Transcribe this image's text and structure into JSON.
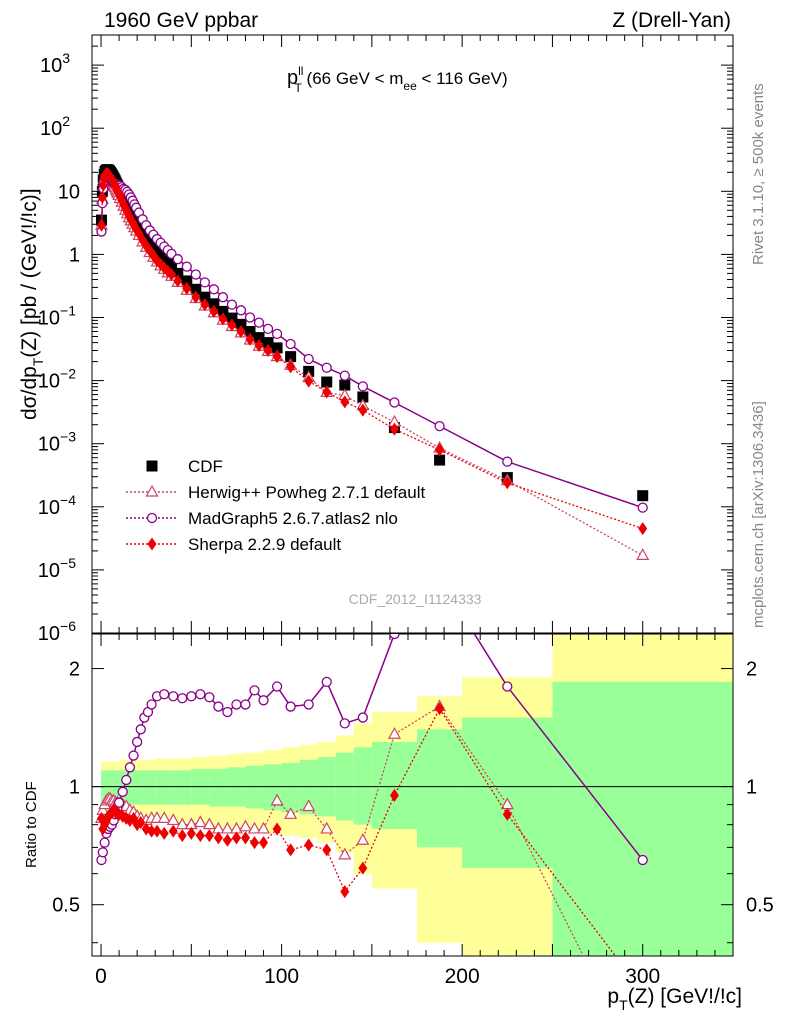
{
  "header": {
    "beam": "1960 GeV ppbar",
    "process": "Z (Drell-Yan)"
  },
  "side": {
    "rivet": "Rivet 3.1.10, ≥ 500k events",
    "source": "mcplots.cern.ch [arXiv:1306.3436]"
  },
  "analysis_id": "CDF_2012_I1124333",
  "panel_title": {
    "main": "p",
    "sup": "ll",
    "sub": "T",
    "rest_a": " (66 GeV < m",
    "rest_sub": "ee",
    "rest_b": " < 116 GeV)"
  },
  "axis_labels": {
    "y_main_a": "dσ/dp",
    "y_main_sub": "T",
    "y_main_b": "(Z) [pb / (GeV!/!c)]",
    "y_ratio": "Ratio to CDF",
    "x_a": "p",
    "x_sub": "T",
    "x_b": "(Z) [GeV!/!c]"
  },
  "colors": {
    "data": "#000000",
    "herwig": "#cc4466",
    "madgraph": "#880088",
    "sherpa": "#ee0000",
    "band_inner": "#99ff99",
    "band_outer": "#ffff99"
  },
  "chart_data": [
    {
      "type": "scatter",
      "panel": "main",
      "yscale": "log",
      "xlim": [
        -5,
        350
      ],
      "ylim": [
        1e-06,
        3000
      ],
      "x_ticks": [
        0,
        100,
        200,
        300
      ],
      "y_tick_labels": [
        {
          "v": 1000,
          "m": "10",
          "e": "3"
        },
        {
          "v": 100,
          "m": "10",
          "e": "2"
        },
        {
          "v": 10,
          "m": "10",
          "e": ""
        },
        {
          "v": 1,
          "m": "1",
          "e": ""
        },
        {
          "v": 0.1,
          "m": "10",
          "e": "−1"
        },
        {
          "v": 0.01,
          "m": "10",
          "e": "−2"
        },
        {
          "v": 0.001,
          "m": "10",
          "e": "−3"
        },
        {
          "v": 0.0001,
          "m": "10",
          "e": "−4"
        },
        {
          "v": 1e-05,
          "m": "10",
          "e": "−5"
        },
        {
          "v": 1e-06,
          "m": "10",
          "e": "−6"
        }
      ],
      "legend_position": "bottom-left",
      "series": [
        {
          "name": "CDF",
          "marker": "square",
          "x": [
            0.25,
            0.75,
            1.25,
            1.75,
            2.25,
            2.75,
            3.25,
            3.75,
            4.25,
            4.75,
            5.25,
            5.75,
            6.25,
            6.75,
            7.25,
            7.75,
            8.25,
            8.75,
            9.25,
            9.75,
            10.5,
            11.5,
            12.5,
            13.5,
            14.5,
            15.5,
            16.5,
            17.5,
            18.5,
            19.5,
            21,
            23,
            25,
            27,
            29,
            31,
            33,
            35,
            37,
            39,
            42.5,
            47.5,
            52.5,
            57.5,
            62.5,
            67.5,
            72.5,
            77.5,
            82.5,
            87.5,
            92.5,
            97.5,
            105,
            115,
            125,
            135,
            145,
            162.5,
            187.5,
            225,
            300
          ],
          "y": [
            3.5,
            10.0,
            15.0,
            18.5,
            20.5,
            21.5,
            22.0,
            22.0,
            21.5,
            21.0,
            20.0,
            19.0,
            18.0,
            17.0,
            16.0,
            15.0,
            14.0,
            13.0,
            12.2,
            11.4,
            10.2,
            8.8,
            7.6,
            6.6,
            5.8,
            5.1,
            4.5,
            4.0,
            3.55,
            3.2,
            2.7,
            2.15,
            1.75,
            1.45,
            1.22,
            1.04,
            0.9,
            0.79,
            0.7,
            0.62,
            0.5,
            0.38,
            0.28,
            0.21,
            0.165,
            0.125,
            0.098,
            0.078,
            0.06,
            0.048,
            0.04,
            0.033,
            0.024,
            0.014,
            0.0095,
            0.0085,
            0.0055,
            0.0018,
            0.00055,
            0.00029,
            0.00015
          ]
        },
        {
          "name": "Herwig++ Powheg 2.7.1 default",
          "marker": "triangle-open",
          "x": [
            0.25,
            0.75,
            1.25,
            1.75,
            2.25,
            2.75,
            3.25,
            3.75,
            4.25,
            4.75,
            5.25,
            5.75,
            6.25,
            6.75,
            7.25,
            7.75,
            8.25,
            8.75,
            9.25,
            9.75,
            10.5,
            11.5,
            12.5,
            13.5,
            14.5,
            15.5,
            16.5,
            17.5,
            18.5,
            19.5,
            21,
            23,
            25,
            27,
            29,
            31,
            33,
            35,
            37,
            39,
            42.5,
            47.5,
            52.5,
            57.5,
            62.5,
            67.5,
            72.5,
            77.5,
            82.5,
            87.5,
            92.5,
            97.5,
            105,
            115,
            125,
            135,
            145,
            162.5,
            187.5,
            225,
            300
          ],
          "y": [
            2.9,
            7.5,
            12.0,
            15.5,
            17.3,
            18.1,
            18.4,
            18.2,
            17.8,
            17.2,
            16.3,
            15.3,
            14.3,
            13.3,
            12.4,
            11.5,
            10.6,
            9.9,
            9.3,
            8.6,
            7.7,
            6.7,
            5.8,
            5.0,
            4.4,
            3.8,
            3.4,
            3.0,
            2.65,
            2.35,
            2.0,
            1.58,
            1.3,
            1.07,
            0.9,
            0.76,
            0.66,
            0.58,
            0.51,
            0.45,
            0.36,
            0.27,
            0.2,
            0.152,
            0.119,
            0.091,
            0.072,
            0.057,
            0.044,
            0.035,
            0.029,
            0.024,
            0.0175,
            0.0112,
            0.0065,
            0.0058,
            0.004,
            0.0022,
            0.00085,
            0.00026,
            1.7e-05
          ]
        },
        {
          "name": "MadGraph5 2.6.7.atlas2 nlo",
          "marker": "circle-open",
          "line": "solid",
          "x": [
            0.25,
            0.75,
            1.25,
            1.75,
            2.25,
            2.75,
            3.25,
            3.75,
            4.25,
            4.75,
            5.25,
            5.75,
            6.25,
            6.75,
            7.25,
            7.75,
            8.25,
            8.75,
            9.25,
            9.75,
            10.5,
            11.5,
            12.5,
            13.5,
            14.5,
            15.5,
            16.5,
            17.5,
            18.5,
            19.5,
            21,
            23,
            25,
            27,
            29,
            31,
            33,
            35,
            37,
            39,
            42.5,
            47.5,
            52.5,
            57.5,
            62.5,
            67.5,
            72.5,
            77.5,
            82.5,
            87.5,
            92.5,
            97.5,
            105,
            115,
            125,
            135,
            145,
            162.5,
            187.5,
            225,
            300
          ],
          "y": [
            2.3,
            6.5,
            11.0,
            14.3,
            16.2,
            17.0,
            17.2,
            17.0,
            16.6,
            16.1,
            15.4,
            14.7,
            14.1,
            13.6,
            13.3,
            13.1,
            13.0,
            12.7,
            12.7,
            12.6,
            12.2,
            11.6,
            10.9,
            10.5,
            9.8,
            8.9,
            8.0,
            7.1,
            6.2,
            5.5,
            4.6,
            3.6,
            2.9,
            2.4,
            2.05,
            1.75,
            1.53,
            1.33,
            1.17,
            1.02,
            0.84,
            0.64,
            0.48,
            0.36,
            0.28,
            0.21,
            0.16,
            0.13,
            0.1,
            0.083,
            0.066,
            0.055,
            0.038,
            0.022,
            0.016,
            0.012,
            0.0081,
            0.0045,
            0.0019,
            0.00052,
            9.7e-05
          ]
        },
        {
          "name": "Sherpa 2.2.9 default",
          "marker": "diamond",
          "line": "dotted",
          "x": [
            0.25,
            0.75,
            1.25,
            1.75,
            2.25,
            2.75,
            3.25,
            3.75,
            4.25,
            4.75,
            5.25,
            5.75,
            6.25,
            6.75,
            7.25,
            7.75,
            8.25,
            8.75,
            9.25,
            9.75,
            10.5,
            11.5,
            12.5,
            13.5,
            14.5,
            15.5,
            16.5,
            17.5,
            18.5,
            19.5,
            21,
            23,
            25,
            27,
            29,
            31,
            33,
            35,
            37,
            39,
            42.5,
            47.5,
            52.5,
            57.5,
            62.5,
            67.5,
            72.5,
            77.5,
            82.5,
            87.5,
            92.5,
            97.5,
            105,
            115,
            125,
            135,
            145,
            162.5,
            187.5,
            225,
            300
          ],
          "y": [
            2.9,
            8.0,
            12.5,
            16.0,
            18.0,
            18.8,
            19.0,
            18.8,
            18.3,
            17.6,
            16.7,
            15.8,
            15.0,
            14.2,
            13.4,
            12.5,
            11.6,
            10.8,
            10.0,
            9.3,
            8.3,
            7.2,
            6.2,
            5.4,
            4.7,
            4.1,
            3.6,
            3.2,
            2.85,
            2.5,
            2.15,
            1.7,
            1.38,
            1.15,
            0.96,
            0.8,
            0.7,
            0.61,
            0.54,
            0.48,
            0.38,
            0.29,
            0.21,
            0.16,
            0.125,
            0.095,
            0.076,
            0.06,
            0.045,
            0.036,
            0.03,
            0.024,
            0.0165,
            0.0098,
            0.0066,
            0.0046,
            0.0034,
            0.0017,
            0.0008,
            0.00024,
            4.5e-05
          ]
        }
      ]
    },
    {
      "type": "line",
      "panel": "ratio",
      "yscale": "log",
      "xlim": [
        -5,
        350
      ],
      "ylim": [
        0.37,
        2.45
      ],
      "x_ticks": [
        0,
        100,
        200,
        300
      ],
      "y_tick_labels": [
        {
          "v": 0.5,
          "m": "0.5",
          "e": ""
        },
        {
          "v": 1,
          "m": "1",
          "e": ""
        },
        {
          "v": 2,
          "m": "2",
          "e": ""
        }
      ],
      "reference_line": 1,
      "bands": {
        "edges": [
          0,
          10,
          20,
          30,
          40,
          50,
          60,
          70,
          80,
          90,
          100,
          110,
          120,
          130,
          140,
          150,
          175,
          200,
          250,
          350
        ],
        "inner_lo": [
          0.9,
          0.9,
          0.9,
          0.9,
          0.9,
          0.9,
          0.89,
          0.89,
          0.88,
          0.87,
          0.86,
          0.85,
          0.84,
          0.82,
          0.8,
          0.78,
          0.7,
          0.62,
          0.35
        ],
        "inner_hi": [
          1.1,
          1.1,
          1.1,
          1.1,
          1.1,
          1.11,
          1.11,
          1.12,
          1.13,
          1.14,
          1.15,
          1.17,
          1.19,
          1.22,
          1.26,
          1.3,
          1.4,
          1.5,
          1.85
        ],
        "outer_lo": [
          0.85,
          0.84,
          0.83,
          0.82,
          0.81,
          0.8,
          0.79,
          0.78,
          0.77,
          0.76,
          0.75,
          0.74,
          0.72,
          0.68,
          0.6,
          0.55,
          0.4,
          0.3,
          0.3
        ],
        "outer_hi": [
          1.16,
          1.17,
          1.17,
          1.18,
          1.18,
          1.19,
          1.2,
          1.21,
          1.22,
          1.24,
          1.26,
          1.28,
          1.3,
          1.35,
          1.45,
          1.55,
          1.7,
          1.9,
          2.7
        ]
      },
      "series": [
        {
          "name": "Herwig++ Powheg 2.7.1 default",
          "marker": "triangle-open",
          "line": "dotted",
          "x": [
            0.25,
            1,
            2,
            3,
            4,
            5,
            6,
            7,
            8,
            9,
            10,
            12,
            14,
            16,
            18,
            20,
            22,
            25,
            28,
            31,
            35,
            40,
            45,
            50,
            55,
            60,
            65,
            70,
            75,
            80,
            85,
            90,
            97.5,
            105,
            115,
            125,
            135,
            145,
            162.5,
            187.5,
            225,
            300
          ],
          "y": [
            0.83,
            0.87,
            0.9,
            0.92,
            0.93,
            0.93,
            0.92,
            0.92,
            0.91,
            0.91,
            0.9,
            0.9,
            0.89,
            0.87,
            0.86,
            0.84,
            0.83,
            0.82,
            0.83,
            0.83,
            0.83,
            0.82,
            0.8,
            0.8,
            0.81,
            0.8,
            0.78,
            0.78,
            0.78,
            0.79,
            0.78,
            0.78,
            0.92,
            0.85,
            0.89,
            0.78,
            0.67,
            0.73,
            1.36,
            1.6,
            0.9,
            0.12
          ]
        },
        {
          "name": "MadGraph5 2.6.7.atlas2 nlo",
          "marker": "circle-open",
          "line": "solid",
          "x": [
            0.25,
            1,
            2,
            3,
            4,
            5,
            6,
            7,
            8,
            9,
            10,
            12,
            14,
            16,
            18,
            20,
            22,
            24,
            26,
            28,
            31,
            35,
            40,
            45,
            50,
            55,
            60,
            65,
            70,
            75,
            80,
            85,
            90,
            97.5,
            105,
            115,
            125,
            135,
            145,
            162.5,
            187.5,
            225,
            300
          ],
          "y": [
            0.65,
            0.68,
            0.72,
            0.76,
            0.78,
            0.79,
            0.8,
            0.82,
            0.85,
            0.88,
            0.91,
            0.97,
            1.04,
            1.12,
            1.2,
            1.3,
            1.4,
            1.5,
            1.55,
            1.62,
            1.7,
            1.72,
            1.7,
            1.68,
            1.7,
            1.72,
            1.69,
            1.6,
            1.55,
            1.62,
            1.62,
            1.76,
            1.66,
            1.8,
            1.6,
            1.62,
            1.85,
            1.45,
            1.5,
            2.45,
            3.4,
            1.8,
            0.65
          ]
        },
        {
          "name": "Sherpa 2.2.9 default",
          "marker": "diamond",
          "line": "dotted",
          "x": [
            0.25,
            1,
            2,
            3,
            4,
            5,
            6,
            7,
            8,
            9,
            10,
            12,
            14,
            16,
            18,
            20,
            22,
            25,
            28,
            31,
            35,
            40,
            45,
            50,
            55,
            60,
            65,
            70,
            75,
            80,
            85,
            90,
            97.5,
            105,
            115,
            125,
            135,
            145,
            162.5,
            187.5,
            225,
            300
          ],
          "y": [
            0.83,
            0.78,
            0.8,
            0.82,
            0.84,
            0.85,
            0.86,
            0.87,
            0.86,
            0.86,
            0.85,
            0.84,
            0.83,
            0.82,
            0.83,
            0.8,
            0.81,
            0.78,
            0.77,
            0.77,
            0.76,
            0.77,
            0.75,
            0.76,
            0.75,
            0.75,
            0.74,
            0.73,
            0.74,
            0.74,
            0.72,
            0.72,
            0.78,
            0.69,
            0.71,
            0.69,
            0.54,
            0.62,
            0.95,
            1.58,
            0.85,
            0.3
          ]
        }
      ]
    }
  ]
}
